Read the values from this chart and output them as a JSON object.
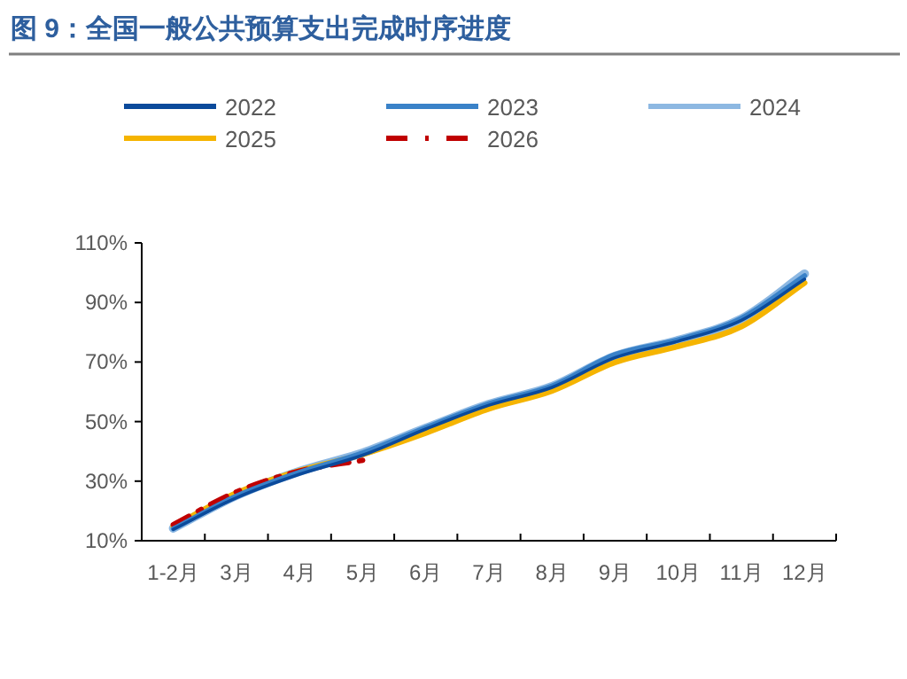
{
  "chart_data": {
    "type": "line",
    "title": "图 9：全国一般公共预算支出完成时序进度",
    "categories": [
      "1-2月",
      "3月",
      "4月",
      "5月",
      "6月",
      "7月",
      "8月",
      "9月",
      "10月",
      "11月",
      "12月"
    ],
    "series": [
      {
        "name": "2022",
        "color": "#0b4a9b",
        "values": [
          13.8,
          24.4,
          32.3,
          38.7,
          47.5,
          55.5,
          61.5,
          71.5,
          77.0,
          84.0,
          97.8
        ]
      },
      {
        "name": "2023",
        "color": "#3a82c8",
        "values": [
          14.0,
          25.0,
          33.0,
          39.5,
          48.0,
          56.0,
          62.0,
          72.5,
          77.5,
          84.7,
          99.0
        ]
      },
      {
        "name": "2024",
        "color": "#8db8e2",
        "values": [
          14.2,
          25.2,
          33.3,
          39.5,
          47.8,
          55.8,
          61.8,
          72.0,
          77.3,
          84.5,
          99.6
        ]
      },
      {
        "name": "2025",
        "color": "#f5b400",
        "values": [
          14.8,
          26.0,
          33.5,
          39.0,
          46.2,
          54.3,
          60.3,
          69.9,
          75.3,
          81.9,
          96.6
        ]
      },
      {
        "name": "2026",
        "color": "#c00000",
        "line_style": "dashed",
        "values": [
          15.4,
          26.4,
          33.4,
          37.0,
          null,
          null,
          null,
          null,
          null,
          null,
          null
        ]
      }
    ],
    "ylim": [
      10,
      110
    ],
    "yticks": [
      {
        "value": 10,
        "label": "10%"
      },
      {
        "value": 30,
        "label": "30%"
      },
      {
        "value": 50,
        "label": "50%"
      },
      {
        "value": 70,
        "label": "70%"
      },
      {
        "value": 90,
        "label": "90%"
      },
      {
        "value": 110,
        "label": "110%"
      }
    ],
    "legend": "top",
    "grid": false
  }
}
